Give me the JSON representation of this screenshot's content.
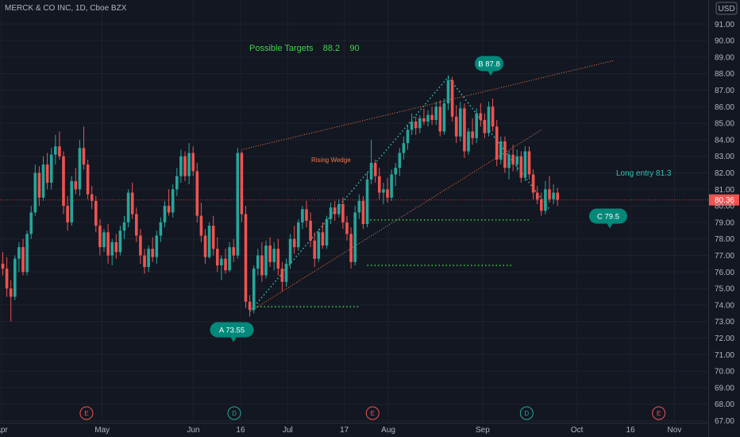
{
  "header": {
    "symbol_title": "MERCK & CO INC, 1D, Cboe BZX",
    "currency_badge": "USD"
  },
  "colors": {
    "background": "#131722",
    "bull": "#26a69a",
    "bear": "#ef5350",
    "grid": "#1e222d",
    "annotation_teal": "#00897b",
    "wedge_line": "#f57c4a",
    "target_text": "#3fd44a",
    "dotted": "#2ec4b6"
  },
  "chart_data": {
    "type": "candlestick",
    "title": "MERCK & CO INC, 1D, Cboe BZX",
    "ylim": [
      67,
      92
    ],
    "y_ticks": [
      67,
      68,
      69,
      70,
      71,
      72,
      73,
      74,
      75,
      76,
      77,
      78,
      79,
      80,
      81,
      82,
      83,
      84,
      85,
      86,
      87,
      88,
      89,
      90,
      91
    ],
    "y_tick_labels": [
      "67.00",
      "68.00",
      "69.00",
      "70.00",
      "71.00",
      "72.00",
      "73.00",
      "74.00",
      "75.00",
      "76.00",
      "77.00",
      "78.00",
      "79.00",
      "80.00",
      "81.00",
      "82.00",
      "83.00",
      "84.00",
      "85.00",
      "86.00",
      "87.00",
      "88.00",
      "89.00",
      "90.00",
      "91.00"
    ],
    "x_range": [
      "2021-04-01",
      "2021-11-15"
    ],
    "x_tick_labels": [
      {
        "label": "Apr",
        "date": "2021-04-01"
      },
      {
        "label": "May",
        "date": "2021-05-03"
      },
      {
        "label": "Jun",
        "date": "2021-06-01"
      },
      {
        "label": "16",
        "date": "2021-06-16"
      },
      {
        "label": "Jul",
        "date": "2021-07-01"
      },
      {
        "label": "17",
        "date": "2021-07-19"
      },
      {
        "label": "Aug",
        "date": "2021-08-02"
      },
      {
        "label": "Sep",
        "date": "2021-09-01"
      },
      {
        "label": "Oct",
        "date": "2021-10-01"
      },
      {
        "label": "16",
        "date": "2021-10-18"
      },
      {
        "label": "Nov",
        "date": "2021-11-01"
      }
    ],
    "last_price": {
      "value": 80.36,
      "label": "80.36"
    },
    "ohlc_series": [
      [
        0,
        76.5,
        77.2,
        75.8,
        76.2
      ],
      [
        1,
        76.2,
        76.9,
        74.5,
        75.0
      ],
      [
        2,
        75.0,
        75.5,
        73.0,
        74.5
      ],
      [
        3,
        74.5,
        77.0,
        74.3,
        76.8
      ],
      [
        4,
        76.8,
        77.8,
        76.0,
        77.5
      ],
      [
        5,
        77.5,
        78.0,
        75.8,
        76.0
      ],
      [
        6,
        76.0,
        78.5,
        75.8,
        78.3
      ],
      [
        7,
        78.3,
        80.0,
        78.0,
        79.6
      ],
      [
        8,
        79.6,
        82.5,
        79.4,
        82.0
      ],
      [
        9,
        82.0,
        82.4,
        80.0,
        80.5
      ],
      [
        10,
        80.5,
        83.0,
        80.3,
        82.5
      ],
      [
        11,
        82.5,
        83.2,
        81.0,
        81.4
      ],
      [
        12,
        81.4,
        83.5,
        81.0,
        83.1
      ],
      [
        13,
        83.1,
        84.3,
        82.5,
        83.6
      ],
      [
        14,
        83.6,
        84.5,
        82.8,
        83.0
      ],
      [
        15,
        83.0,
        83.3,
        79.5,
        80.0
      ],
      [
        16,
        80.0,
        80.6,
        78.5,
        79.0
      ],
      [
        17,
        79.0,
        81.8,
        78.8,
        81.5
      ],
      [
        18,
        81.5,
        82.3,
        80.7,
        81.0
      ],
      [
        19,
        81.0,
        84.0,
        80.6,
        83.5
      ],
      [
        20,
        83.5,
        84.8,
        82.2,
        82.5
      ],
      [
        21,
        82.5,
        82.8,
        80.4,
        80.7
      ],
      [
        22,
        80.7,
        81.2,
        79.8,
        80.3
      ],
      [
        23,
        80.3,
        80.6,
        78.4,
        78.8
      ],
      [
        24,
        78.8,
        79.2,
        77.0,
        77.5
      ],
      [
        25,
        77.5,
        78.6,
        77.2,
        78.4
      ],
      [
        26,
        78.4,
        78.9,
        76.5,
        77.0
      ],
      [
        27,
        77.0,
        78.0,
        76.4,
        77.8
      ],
      [
        28,
        77.8,
        78.3,
        76.8,
        77.2
      ],
      [
        29,
        77.2,
        78.8,
        77.0,
        78.5
      ],
      [
        30,
        78.5,
        79.4,
        78.0,
        79.0
      ],
      [
        31,
        79.0,
        81.0,
        78.7,
        80.8
      ],
      [
        32,
        80.8,
        81.4,
        79.2,
        79.5
      ],
      [
        33,
        79.5,
        79.9,
        77.8,
        78.2
      ],
      [
        34,
        78.2,
        78.6,
        76.5,
        77.0
      ],
      [
        35,
        77.0,
        77.4,
        75.9,
        76.3
      ],
      [
        36,
        76.3,
        77.6,
        76.0,
        77.4
      ],
      [
        37,
        77.4,
        78.1,
        76.6,
        76.9
      ],
      [
        38,
        76.9,
        78.5,
        76.5,
        78.2
      ],
      [
        39,
        78.2,
        79.3,
        77.8,
        79.0
      ],
      [
        40,
        79.0,
        80.3,
        78.7,
        80.0
      ],
      [
        41,
        80.0,
        81.0,
        79.4,
        79.6
      ],
      [
        42,
        79.6,
        81.3,
        79.3,
        81.0
      ],
      [
        43,
        81.0,
        82.3,
        80.6,
        81.8
      ],
      [
        44,
        81.8,
        83.4,
        81.4,
        83.0
      ],
      [
        45,
        83.0,
        83.3,
        81.5,
        81.8
      ],
      [
        46,
        81.8,
        83.8,
        81.3,
        83.2
      ],
      [
        47,
        83.2,
        83.6,
        81.8,
        82.1
      ],
      [
        48,
        82.1,
        82.6,
        79.0,
        79.4
      ],
      [
        49,
        79.4,
        80.2,
        77.8,
        78.2
      ],
      [
        50,
        78.2,
        78.6,
        76.5,
        76.9
      ],
      [
        51,
        76.9,
        79.0,
        76.8,
        78.8
      ],
      [
        52,
        78.8,
        79.4,
        77.0,
        77.4
      ],
      [
        53,
        77.4,
        78.1,
        76.0,
        76.4
      ],
      [
        54,
        76.4,
        77.0,
        75.5,
        76.8
      ],
      [
        55,
        76.8,
        77.4,
        75.9,
        76.1
      ],
      [
        56,
        76.1,
        77.8,
        76.0,
        77.5
      ],
      [
        57,
        77.5,
        78.0,
        76.6,
        77.0
      ],
      [
        58,
        77.0,
        83.5,
        76.8,
        83.2
      ],
      [
        59,
        83.2,
        83.3,
        79.0,
        79.5
      ],
      [
        60,
        79.5,
        80.0,
        73.8,
        74.2
      ],
      [
        61,
        74.2,
        74.6,
        73.3,
        73.7
      ],
      [
        62,
        73.7,
        76.4,
        73.5,
        76.2
      ],
      [
        63,
        76.2,
        77.4,
        75.8,
        77.0
      ],
      [
        64,
        77.0,
        77.8,
        75.4,
        75.8
      ],
      [
        65,
        75.8,
        77.9,
        75.6,
        77.6
      ],
      [
        66,
        77.6,
        78.1,
        76.3,
        76.6
      ],
      [
        67,
        76.6,
        77.8,
        76.1,
        77.4
      ],
      [
        68,
        77.4,
        78.0,
        75.8,
        76.2
      ],
      [
        69,
        76.2,
        76.6,
        74.8,
        75.4
      ],
      [
        70,
        75.4,
        76.8,
        75.1,
        76.5
      ],
      [
        71,
        76.5,
        78.3,
        76.2,
        78.0
      ],
      [
        72,
        78.0,
        78.8,
        77.1,
        77.5
      ],
      [
        73,
        77.5,
        79.2,
        77.3,
        79.0
      ],
      [
        74,
        79.0,
        80.0,
        78.6,
        79.8
      ],
      [
        75,
        79.8,
        80.3,
        78.7,
        79.1
      ],
      [
        76,
        79.1,
        79.6,
        77.5,
        77.9
      ],
      [
        77,
        77.9,
        78.4,
        76.3,
        76.8
      ],
      [
        78,
        76.8,
        78.6,
        76.6,
        78.4
      ],
      [
        79,
        78.4,
        79.0,
        77.4,
        77.6
      ],
      [
        80,
        77.6,
        79.4,
        77.4,
        79.2
      ],
      [
        81,
        79.2,
        80.2,
        78.9,
        79.9
      ],
      [
        82,
        79.9,
        80.3,
        79.1,
        79.5
      ],
      [
        83,
        79.5,
        80.4,
        79.3,
        80.1
      ],
      [
        84,
        80.1,
        80.5,
        78.6,
        79.0
      ],
      [
        85,
        79.0,
        79.4,
        77.9,
        78.3
      ],
      [
        86,
        78.3,
        78.7,
        76.2,
        76.6
      ],
      [
        87,
        76.6,
        80.0,
        76.4,
        79.6
      ],
      [
        88,
        79.6,
        80.7,
        79.2,
        80.3
      ],
      [
        89,
        80.3,
        80.6,
        78.6,
        78.9
      ],
      [
        90,
        78.9,
        82.0,
        78.7,
        81.6
      ],
      [
        91,
        81.6,
        84.0,
        81.3,
        82.6
      ],
      [
        92,
        82.6,
        82.8,
        81.4,
        81.8
      ],
      [
        93,
        81.8,
        82.3,
        80.4,
        80.8
      ],
      [
        94,
        80.8,
        81.4,
        80.1,
        81.0
      ],
      [
        95,
        81.0,
        81.7,
        80.2,
        80.5
      ],
      [
        96,
        80.5,
        82.2,
        80.3,
        81.9
      ],
      [
        97,
        81.9,
        82.6,
        81.2,
        82.3
      ],
      [
        98,
        82.3,
        83.5,
        81.8,
        83.2
      ],
      [
        99,
        83.2,
        84.2,
        82.8,
        83.8
      ],
      [
        100,
        83.8,
        84.9,
        83.4,
        84.6
      ],
      [
        101,
        84.6,
        85.6,
        84.3,
        85.1
      ],
      [
        102,
        85.1,
        85.4,
        84.3,
        84.7
      ],
      [
        103,
        84.7,
        85.5,
        84.4,
        85.3
      ],
      [
        104,
        85.3,
        85.9,
        84.9,
        85.1
      ],
      [
        105,
        85.1,
        85.8,
        84.8,
        85.5
      ],
      [
        106,
        85.5,
        86.0,
        84.9,
        85.2
      ],
      [
        107,
        85.2,
        86.3,
        84.9,
        86.0
      ],
      [
        108,
        86.0,
        86.4,
        84.2,
        84.5
      ],
      [
        109,
        84.5,
        86.5,
        84.3,
        86.2
      ],
      [
        110,
        86.2,
        87.9,
        85.8,
        87.6
      ],
      [
        111,
        87.6,
        87.8,
        85.1,
        85.4
      ],
      [
        112,
        85.4,
        86.1,
        83.8,
        84.2
      ],
      [
        113,
        84.2,
        86.3,
        83.9,
        85.9
      ],
      [
        114,
        85.9,
        86.2,
        82.9,
        83.3
      ],
      [
        115,
        83.3,
        84.7,
        83.1,
        84.5
      ],
      [
        116,
        84.5,
        85.3,
        83.7,
        84.1
      ],
      [
        117,
        84.1,
        85.9,
        83.8,
        85.6
      ],
      [
        118,
        85.6,
        86.2,
        84.8,
        85.2
      ],
      [
        119,
        85.2,
        85.6,
        84.1,
        84.4
      ],
      [
        120,
        84.4,
        86.3,
        84.2,
        86.0
      ],
      [
        121,
        86.0,
        86.5,
        84.5,
        84.8
      ],
      [
        122,
        84.8,
        85.2,
        82.4,
        82.8
      ],
      [
        123,
        82.8,
        84.2,
        82.5,
        83.9
      ],
      [
        124,
        83.9,
        84.2,
        82.0,
        82.3
      ],
      [
        125,
        82.3,
        83.4,
        81.6,
        83.1
      ],
      [
        126,
        83.1,
        83.7,
        82.1,
        82.5
      ],
      [
        127,
        82.5,
        83.4,
        82.1,
        83.0
      ],
      [
        128,
        83.0,
        83.3,
        81.4,
        81.7
      ],
      [
        129,
        81.7,
        83.6,
        81.5,
        83.3
      ],
      [
        130,
        83.3,
        83.6,
        81.6,
        81.9
      ],
      [
        131,
        81.9,
        82.2,
        80.4,
        80.8
      ],
      [
        132,
        80.8,
        81.2,
        80.1,
        80.4
      ],
      [
        133,
        80.4,
        80.8,
        79.4,
        79.7
      ],
      [
        134,
        79.7,
        81.5,
        79.5,
        81.0
      ],
      [
        135,
        81.0,
        81.8,
        80.2,
        80.4
      ],
      [
        136,
        80.4,
        81.3,
        80.1,
        80.8
      ],
      [
        137,
        80.8,
        81.1,
        80.0,
        80.36
      ]
    ],
    "annotations": {
      "targets": {
        "text": "Possible Targets    88.2    90"
      },
      "wedge_label": "Rising Wedge",
      "long_entry": "Long entry 81.3",
      "point_a": {
        "label": "A  73.55",
        "bar": 61,
        "price": 73.55
      },
      "point_b": {
        "label": "B  87.8",
        "bar": 110,
        "price": 87.8
      },
      "point_c": {
        "label": "C 79.5",
        "bar": 135,
        "price": 79.5
      },
      "wedge_upper": [
        [
          59,
          83.4
        ],
        [
          151,
          88.8
        ]
      ],
      "wedge_lower": [
        [
          61,
          73.6
        ],
        [
          133,
          84.6
        ]
      ],
      "dotted_rise": [
        [
          61,
          73.6
        ],
        [
          110,
          87.8
        ]
      ],
      "dotted_fall": [
        [
          110,
          87.8
        ],
        [
          135,
          79.8
        ]
      ],
      "support_lines": [
        {
          "from": 61,
          "to": 88,
          "price": 73.9
        },
        {
          "from": 90,
          "to": 126,
          "price": 76.4
        },
        {
          "from": 89,
          "to": 130,
          "price": 79.15
        }
      ],
      "event_markers": [
        {
          "text": "E",
          "date": "2021-04-28",
          "color": "#ef5350"
        },
        {
          "text": "D",
          "date": "2021-06-14",
          "color": "#26a69a"
        },
        {
          "text": "E",
          "date": "2021-07-28",
          "color": "#ef5350"
        },
        {
          "text": "D",
          "date": "2021-09-15",
          "color": "#26a69a"
        },
        {
          "text": "E",
          "date": "2021-10-27",
          "color": "#ef5350"
        }
      ]
    }
  }
}
